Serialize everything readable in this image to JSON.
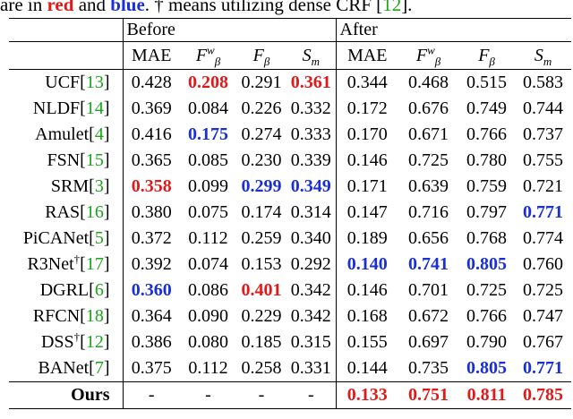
{
  "caption": {
    "text1": "are in ",
    "red_word": "red",
    "text2": " and ",
    "blue_word": "blue",
    "text3": ".  †  means utilizing dense CRF [",
    "ref": "12",
    "text4": "]."
  },
  "groups": {
    "before": "Before",
    "after": "After"
  },
  "columns": {
    "mae": "MAE",
    "fwb_main": "F",
    "fwb_sup": "w",
    "fwb_sub": "β",
    "fb_main": "F",
    "fb_sub": "β",
    "sm_main": "S",
    "sm_sub": "m"
  },
  "rows": [
    {
      "name": "UCF",
      "dagger": "",
      "ref": "13",
      "v": [
        "0.428",
        "0.208",
        "0.291",
        "0.361",
        "0.344",
        "0.468",
        "0.515",
        "0.583"
      ],
      "s": [
        "",
        "red",
        "",
        "red",
        "",
        "",
        "",
        ""
      ]
    },
    {
      "name": "NLDF",
      "dagger": "",
      "ref": "14",
      "v": [
        "0.369",
        "0.084",
        "0.226",
        "0.332",
        "0.172",
        "0.676",
        "0.749",
        "0.744"
      ],
      "s": [
        "",
        "",
        "",
        "",
        "",
        "",
        "",
        ""
      ]
    },
    {
      "name": "Amulet",
      "dagger": "",
      "ref": "4",
      "v": [
        "0.416",
        "0.175",
        "0.274",
        "0.333",
        "0.170",
        "0.671",
        "0.766",
        "0.737"
      ],
      "s": [
        "",
        "blue",
        "",
        "",
        "",
        "",
        "",
        ""
      ]
    },
    {
      "name": "FSN",
      "dagger": "",
      "ref": "15",
      "v": [
        "0.365",
        "0.085",
        "0.230",
        "0.339",
        "0.146",
        "0.725",
        "0.780",
        "0.755"
      ],
      "s": [
        "",
        "",
        "",
        "",
        "",
        "",
        "",
        ""
      ]
    },
    {
      "name": "SRM",
      "dagger": "",
      "ref": "3",
      "v": [
        "0.358",
        "0.099",
        "0.299",
        "0.349",
        "0.171",
        "0.639",
        "0.759",
        "0.721"
      ],
      "s": [
        "red",
        "",
        "blue",
        "blue",
        "",
        "",
        "",
        ""
      ]
    },
    {
      "name": "RAS",
      "dagger": "",
      "ref": "16",
      "v": [
        "0.380",
        "0.075",
        "0.174",
        "0.314",
        "0.147",
        "0.716",
        "0.797",
        "0.771"
      ],
      "s": [
        "",
        "",
        "",
        "",
        "",
        "",
        "",
        "blue"
      ]
    },
    {
      "name": "PiCANet",
      "dagger": "",
      "ref": "5",
      "v": [
        "0.372",
        "0.112",
        "0.259",
        "0.340",
        "0.189",
        "0.656",
        "0.768",
        "0.774"
      ],
      "s": [
        "",
        "",
        "",
        "",
        "",
        "",
        "",
        ""
      ]
    },
    {
      "name": "R3Net",
      "dagger": "†",
      "ref": "17",
      "v": [
        "0.392",
        "0.074",
        "0.153",
        "0.292",
        "0.140",
        "0.741",
        "0.805",
        "0.760"
      ],
      "s": [
        "",
        "",
        "",
        "",
        "blue",
        "blue",
        "blue",
        ""
      ]
    },
    {
      "name": "DGRL",
      "dagger": "",
      "ref": "6",
      "v": [
        "0.360",
        "0.086",
        "0.401",
        "0.342",
        "0.146",
        "0.701",
        "0.725",
        "0.725"
      ],
      "s": [
        "blue",
        "",
        "red",
        "",
        "",
        "",
        "",
        ""
      ]
    },
    {
      "name": "RFCN",
      "dagger": "",
      "ref": "18",
      "v": [
        "0.364",
        "0.090",
        "0.229",
        "0.342",
        "0.168",
        "0.672",
        "0.766",
        "0.747"
      ],
      "s": [
        "",
        "",
        "",
        "",
        "",
        "",
        "",
        ""
      ]
    },
    {
      "name": "DSS",
      "dagger": "†",
      "ref": "12",
      "v": [
        "0.386",
        "0.080",
        "0.185",
        "0.315",
        "0.155",
        "0.697",
        "0.790",
        "0.767"
      ],
      "s": [
        "",
        "",
        "",
        "",
        "",
        "",
        "",
        ""
      ]
    },
    {
      "name": "BANet",
      "dagger": "",
      "ref": "7",
      "v": [
        "0.375",
        "0.112",
        "0.258",
        "0.331",
        "0.144",
        "0.735",
        "0.805",
        "0.771"
      ],
      "s": [
        "",
        "",
        "",
        "",
        "",
        "",
        "blue",
        "blue"
      ]
    }
  ],
  "ours": {
    "name": "Ours",
    "v": [
      "-",
      "-",
      "-",
      "-",
      "0.133",
      "0.751",
      "0.811",
      "0.785"
    ],
    "s": [
      "",
      "",
      "",
      "",
      "red",
      "red",
      "red",
      "red"
    ]
  }
}
